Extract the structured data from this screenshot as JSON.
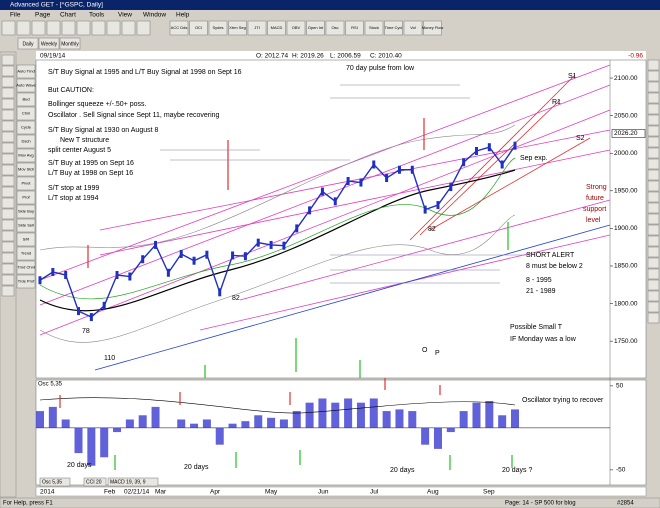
{
  "window": {
    "title": "Advanced GET - [^GSPC, Daily]",
    "menu": [
      "File",
      "Page",
      "Chart",
      "Tools",
      "View",
      "Window",
      "Help"
    ],
    "toolbar": [
      "ACC Dds",
      "OCI",
      "Sydes",
      "Xtrm Seg",
      "JTI",
      "MACD",
      "OBV",
      "Open Int",
      "Osc",
      "RSI",
      "Stock",
      "Time Cycl",
      "Vol",
      "Money Flow"
    ],
    "tabs": [
      "Daily",
      "Weekly",
      "Monthly"
    ],
    "side_tools": [
      "Auto Trnd",
      "Auto Wave",
      "Bud",
      "Chnl",
      "Cycle",
      "Dsch",
      "Mov Avg",
      "Mov Stdr",
      "Pivot",
      "Prof",
      "Side Buy",
      "Side Sell",
      "S/R",
      "Trend",
      "Trnd Chnl",
      "Trde Prof"
    ],
    "status": {
      "left": "For Help, press F1",
      "center": "Page: 14 - SP 500 for blog",
      "right": "#2854"
    },
    "bottom_tabs": [
      "Osc 5,35",
      "CCI 20",
      "MACD 19, 39, 9"
    ]
  },
  "header": {
    "date": "09/19/14",
    "ohlc": [
      "O: 2012.74",
      "H: 2019.26",
      "L: 2006.59",
      "C: 2010.40"
    ],
    "change": "-0.96"
  },
  "price_panel": {
    "ylim": [
      1701,
      2124
    ],
    "yticks": [
      {
        "value": 1750,
        "label": "1750.00"
      },
      {
        "value": 1800,
        "label": "1800.00"
      },
      {
        "value": 1850,
        "label": "1850.00"
      },
      {
        "value": 1900,
        "label": "1900.00"
      },
      {
        "value": 1950,
        "label": "1950.00"
      },
      {
        "value": 2000,
        "label": "2000.00"
      },
      {
        "value": 2050,
        "label": "2050.00"
      },
      {
        "value": 2100,
        "label": "2100.00"
      }
    ],
    "last_price": {
      "value": 2026.2,
      "label": "2026.20"
    },
    "values": [
      1831,
      1842,
      1838,
      1790,
      1782,
      1797,
      1838,
      1836,
      1859,
      1878,
      1841,
      1866,
      1857,
      1865,
      1815,
      1864,
      1863,
      1881,
      1878,
      1877,
      1900,
      1924,
      1949,
      1936,
      1963,
      1961,
      1985,
      1967,
      1978,
      1978,
      1925,
      1931,
      1955,
      1988,
      2003,
      2008,
      1985,
      2010
    ],
    "color": "#2030c0",
    "notes": [
      "S/T Buy Signal at 1995 and L/T Buy Signal at 1998 on Sept 16",
      "But CAUTION:",
      "Bollinger squeeze +/-.50+ poss.",
      "Oscillator . Sell Signal since Sept 11, maybe recovering",
      "S/T Buy Signal at 1930 on August 8",
      "New T structure",
      "split center August 5",
      "S/T Buy at 1995 on Sept 16",
      "L/T Buy at 1998 on Sept 16",
      "S/T stop at 1999",
      "L/T stop at 1994",
      "70 day pulse from low",
      "S1",
      "R1",
      "S2",
      "Sep exp.",
      "Strong",
      "future",
      "support",
      "level",
      "SHORT ALERT",
      "8 must be below 2",
      "8 - 1995",
      "21 - 1989",
      "Possible Small T",
      "IF Monday was a low",
      "78",
      "110",
      "82",
      "82",
      "O",
      "P"
    ]
  },
  "osc_panel": {
    "title": "Osc 5,35",
    "ylim": [
      -68,
      57
    ],
    "yticks": [
      -50,
      50
    ],
    "values": [
      20,
      25,
      10,
      -30,
      -45,
      -35,
      -5,
      10,
      15,
      25,
      0,
      10,
      5,
      10,
      -20,
      5,
      8,
      15,
      12,
      10,
      20,
      30,
      35,
      30,
      35,
      30,
      35,
      20,
      22,
      20,
      -20,
      -25,
      -5,
      20,
      30,
      32,
      15,
      22
    ],
    "color": "#3a3ad0",
    "notes": [
      "Oscillator trying to recover",
      "20 days",
      "20 days",
      "20 days",
      "20 days ?"
    ]
  },
  "x_labels": [
    "2014",
    "Feb",
    "02/21/14",
    "Mar",
    "Apr",
    "May",
    "Jun",
    "Jul",
    "Aug",
    "Sep"
  ]
}
